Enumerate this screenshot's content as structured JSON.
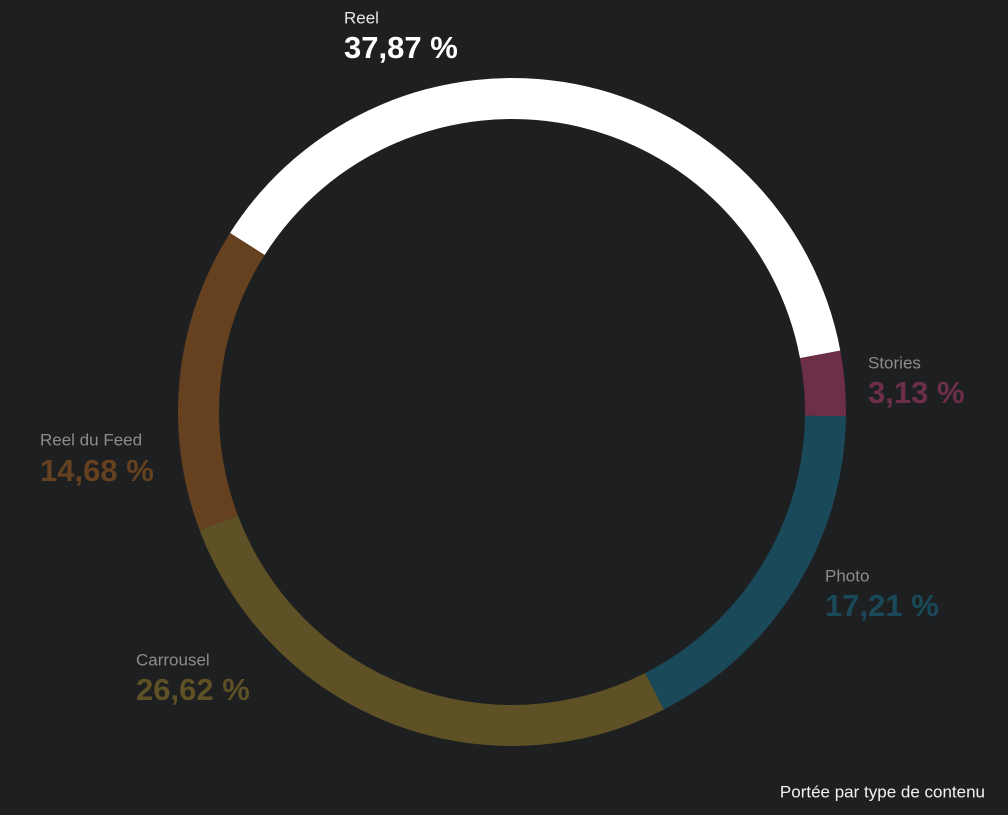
{
  "chart_data": {
    "type": "donut",
    "title": "Portée par type de contenu",
    "categories": [
      "Reel",
      "Stories",
      "Photo",
      "Carrousel",
      "Reel du Feed"
    ],
    "values": [
      37.87,
      3.13,
      17.21,
      26.62,
      14.68
    ],
    "value_labels": [
      "37,87 %",
      "3,13 %",
      "17,21 %",
      "26,62 %",
      "14,68 %"
    ],
    "colors": [
      "#ffffff",
      "#6c2f47",
      "#1a4a59",
      "#5f5126",
      "#65411f"
    ]
  }
}
